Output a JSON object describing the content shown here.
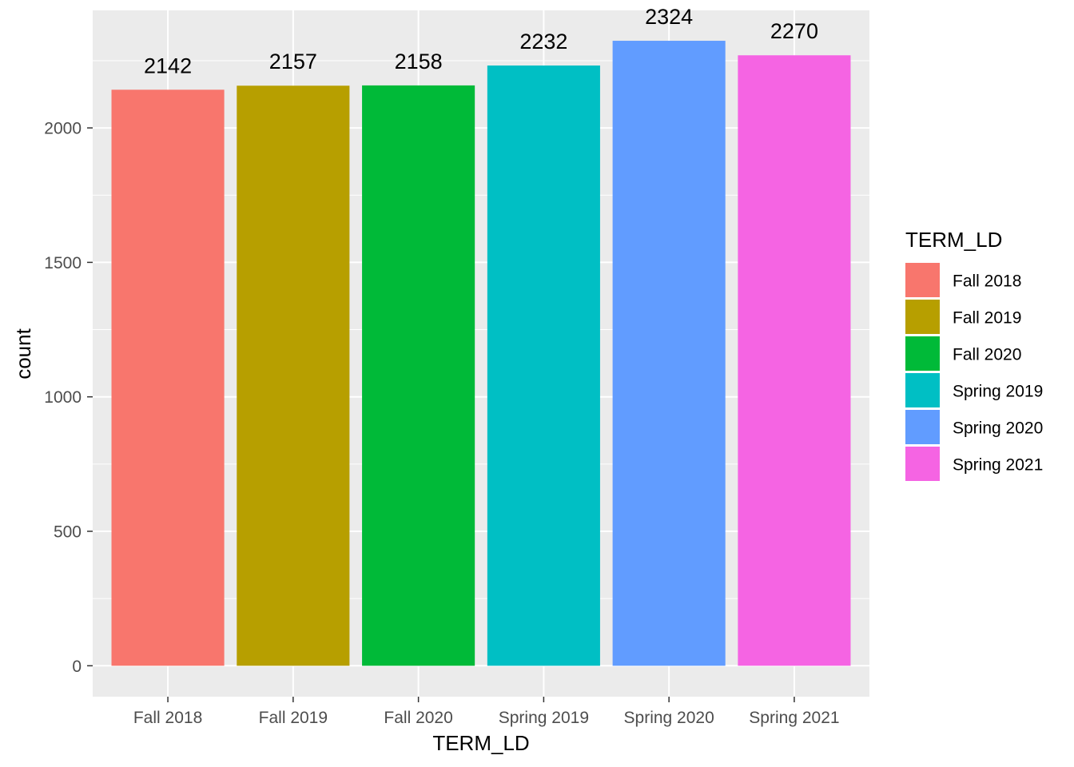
{
  "chart_data": {
    "type": "bar",
    "categories": [
      "Fall 2018",
      "Fall 2019",
      "Fall 2020",
      "Spring 2019",
      "Spring 2020",
      "Spring 2021"
    ],
    "values": [
      2142,
      2157,
      2158,
      2232,
      2324,
      2270
    ],
    "data_labels": [
      "2142",
      "2157",
      "2158",
      "2232",
      "2324",
      "2270"
    ],
    "colors": [
      "#F8766D",
      "#B79F00",
      "#00BA38",
      "#00BFC4",
      "#619CFF",
      "#F564E3"
    ],
    "xlabel": "TERM_LD",
    "ylabel": "count",
    "ylim": [
      -115,
      2437
    ],
    "yticks": [
      0,
      500,
      1000,
      1500,
      2000
    ],
    "ytick_labels": [
      "0",
      "500",
      "1000",
      "1500",
      "2000"
    ],
    "grid": true,
    "legend": {
      "title": "TERM_LD",
      "placement": "right",
      "entries": [
        "Fall 2018",
        "Fall 2019",
        "Fall 2020",
        "Spring 2019",
        "Spring 2020",
        "Spring 2021"
      ]
    },
    "panel_background": "#EBEBEB",
    "grid_color": "#FFFFFF"
  }
}
